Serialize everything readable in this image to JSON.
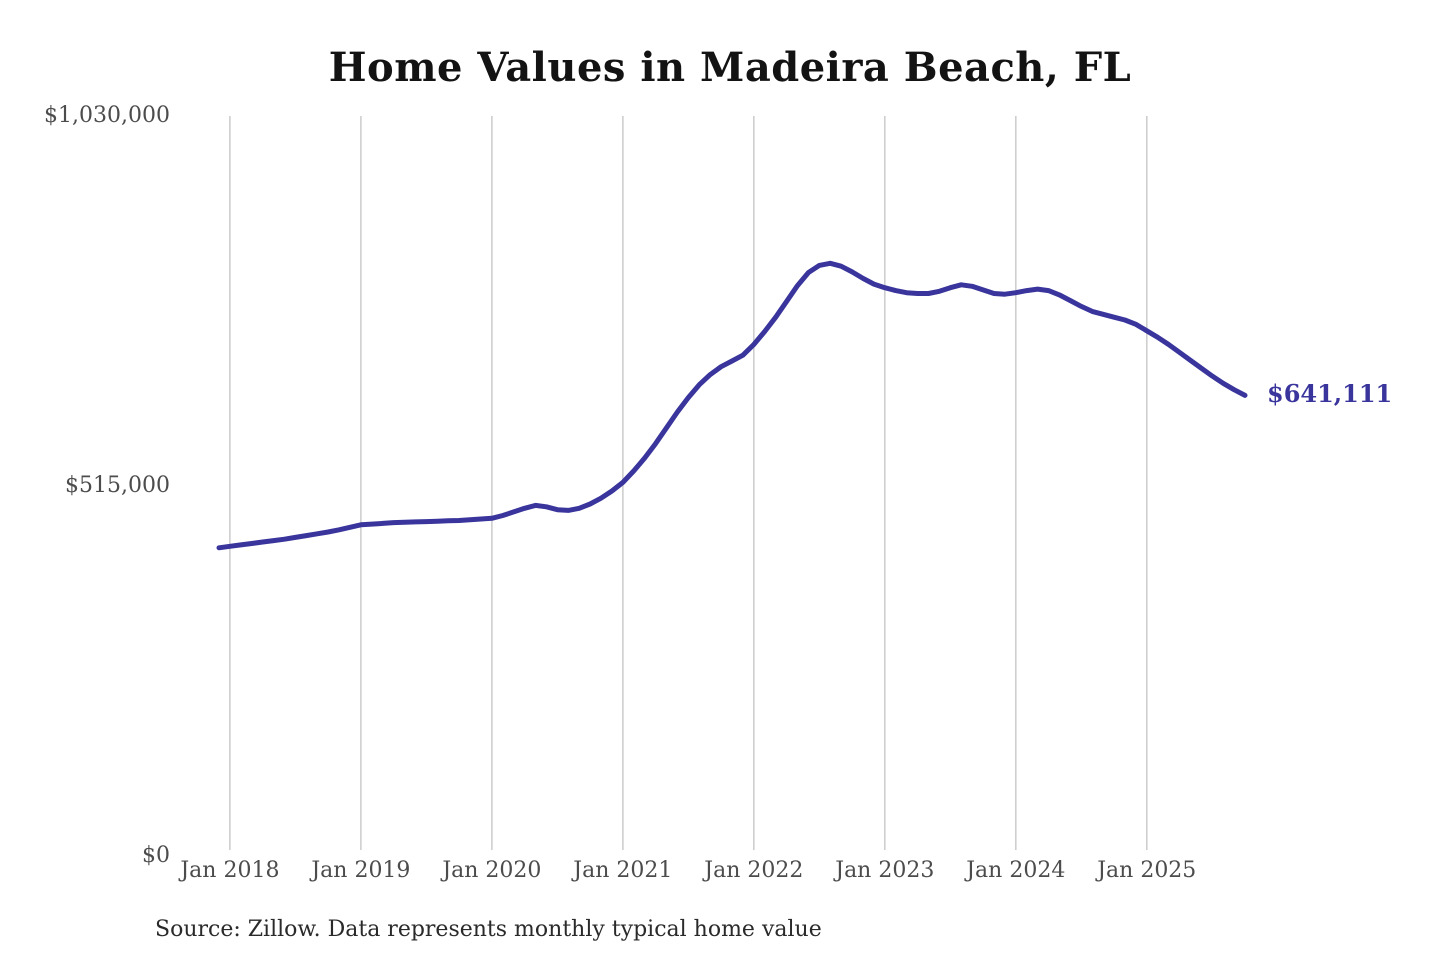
{
  "title": "Home Values in Madeira Beach, FL",
  "source_note": "Source: Zillow. Data represents monthly typical home value",
  "colors": {
    "line": "#39359c",
    "end_label": "#39359c",
    "gridline": "#cbcbcb",
    "axis_text": "#4c4c4c",
    "title_text": "#131313",
    "source_text": "#2a2a2a",
    "background": "#ffffff"
  },
  "chart_data": {
    "type": "line",
    "title": "Home Values in Madeira Beach, FL",
    "series_name": "Monthly typical home value",
    "grid": "vertical",
    "legend": "none",
    "ylim": [
      0,
      1030000
    ],
    "yticks": [
      {
        "value": 0,
        "label": "$0"
      },
      {
        "value": 515000,
        "label": "$515,000"
      },
      {
        "value": 1030000,
        "label": "$1,030,000"
      }
    ],
    "xticks": [
      "Jan 2018",
      "Jan 2019",
      "Jan 2020",
      "Jan 2021",
      "Jan 2022",
      "Jan 2023",
      "Jan 2024",
      "Jan 2025"
    ],
    "last_value_label": "$641,111",
    "last_value": 641111,
    "x": [
      "Dec 2017",
      "Jan 2018",
      "Feb 2018",
      "Mar 2018",
      "Apr 2018",
      "May 2018",
      "Jun 2018",
      "Jul 2018",
      "Aug 2018",
      "Sep 2018",
      "Oct 2018",
      "Nov 2018",
      "Dec 2018",
      "Jan 2019",
      "Feb 2019",
      "Mar 2019",
      "Apr 2019",
      "May 2019",
      "Jun 2019",
      "Jul 2019",
      "Aug 2019",
      "Sep 2019",
      "Oct 2019",
      "Nov 2019",
      "Dec 2019",
      "Jan 2020",
      "Feb 2020",
      "Mar 2020",
      "Apr 2020",
      "May 2020",
      "Jun 2020",
      "Jul 2020",
      "Aug 2020",
      "Sep 2020",
      "Oct 2020",
      "Nov 2020",
      "Dec 2020",
      "Jan 2021",
      "Feb 2021",
      "Mar 2021",
      "Apr 2021",
      "May 2021",
      "Jun 2021",
      "Jul 2021",
      "Aug 2021",
      "Sep 2021",
      "Oct 2021",
      "Nov 2021",
      "Dec 2021",
      "Jan 2022",
      "Feb 2022",
      "Mar 2022",
      "Apr 2022",
      "May 2022",
      "Jun 2022",
      "Jul 2022",
      "Aug 2022",
      "Sep 2022",
      "Oct 2022",
      "Nov 2022",
      "Dec 2022",
      "Jan 2023",
      "Feb 2023",
      "Mar 2023",
      "Apr 2023",
      "May 2023",
      "Jun 2023",
      "Jul 2023",
      "Aug 2023",
      "Sep 2023",
      "Oct 2023",
      "Nov 2023",
      "Dec 2023",
      "Jan 2024",
      "Feb 2024",
      "Mar 2024",
      "Apr 2024",
      "May 2024",
      "Jun 2024",
      "Jul 2024",
      "Aug 2024",
      "Sep 2024",
      "Oct 2024",
      "Nov 2024",
      "Dec 2024",
      "Jan 2025",
      "Feb 2025",
      "Mar 2025",
      "Apr 2025",
      "May 2025",
      "Jun 2025",
      "Jul 2025",
      "Aug 2025",
      "Sep 2025",
      "Oct 2025"
    ],
    "values": [
      429000,
      431000,
      433000,
      435000,
      437000,
      439000,
      441000,
      443500,
      446000,
      448500,
      451000,
      454000,
      457500,
      461000,
      462000,
      463000,
      464000,
      464500,
      465000,
      465500,
      466000,
      466500,
      467000,
      468000,
      469000,
      470000,
      474000,
      479000,
      484000,
      488000,
      486000,
      482000,
      481000,
      484000,
      490000,
      498000,
      508000,
      520000,
      536000,
      554000,
      574000,
      596000,
      618000,
      638000,
      656000,
      670000,
      681000,
      689000,
      697000,
      712000,
      730000,
      750000,
      772000,
      794000,
      812000,
      822000,
      825000,
      821000,
      813000,
      804000,
      796000,
      791000,
      787000,
      784000,
      783000,
      783000,
      786000,
      791000,
      795000,
      793000,
      788000,
      783000,
      782000,
      784000,
      787000,
      789000,
      787000,
      781000,
      773000,
      765000,
      758000,
      754000,
      750000,
      746000,
      740000,
      731000,
      722000,
      712000,
      701000,
      690000,
      679000,
      668000,
      658000,
      649000,
      641111
    ]
  }
}
